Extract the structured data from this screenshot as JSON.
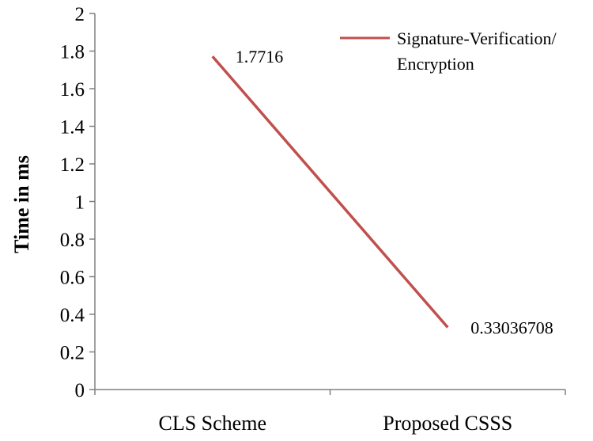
{
  "chart_data": {
    "type": "line",
    "categories": [
      "CLS Scheme",
      "Proposed CSSS"
    ],
    "series": [
      {
        "name": "Signature-Verification/ Encryption",
        "name_lines": [
          "Signature-Verification/",
          "Encryption"
        ],
        "values": [
          1.7716,
          0.33036708
        ],
        "value_labels": [
          "1.7716",
          "0.33036708"
        ],
        "color": "#c0504d"
      }
    ],
    "title": "",
    "xlabel": "",
    "ylabel": "Time in ms",
    "ylim": [
      0,
      2
    ],
    "yticks": [
      0,
      0.2,
      0.4,
      0.6,
      0.8,
      1,
      1.2,
      1.4,
      1.6,
      1.8,
      2
    ],
    "ytick_labels": [
      "0",
      "0.2",
      "0.4",
      "0.6",
      "0.8",
      "1",
      "1.2",
      "1.4",
      "1.6",
      "1.8",
      "2"
    ],
    "grid": false,
    "legend_position": "top-right",
    "axis_color": "#808080"
  }
}
